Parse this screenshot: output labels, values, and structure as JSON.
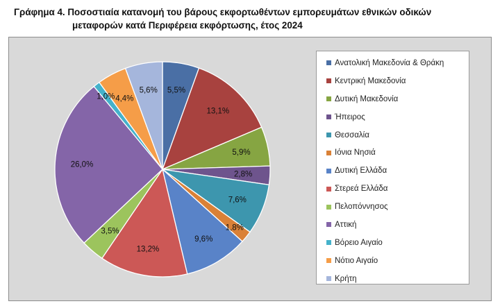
{
  "chart_data": {
    "type": "pie",
    "title_line1": "Γράφημα 4. Ποσοστιαία κατανομή του βάρους εκφορτωθέντων εμπορευμάτων εθνικών οδικών",
    "title_line2": "μεταφορών κατά Περιφέρεια εκφόρτωσης, έτος 2024",
    "legend_position": "right",
    "slices": [
      {
        "name": "Ανατολική Μακεδονία & Θράκη",
        "value": 5.5,
        "label": "5,5%",
        "color": "#4a6fa5"
      },
      {
        "name": "Κεντρική Μακεδονία",
        "value": 13.1,
        "label": "13,1%",
        "color": "#a8423f"
      },
      {
        "name": "Δυτική Μακεδονία",
        "value": 5.9,
        "label": "5,9%",
        "color": "#86a542"
      },
      {
        "name": "Ήπειρος",
        "value": 2.8,
        "label": "2,8%",
        "color": "#6e548d"
      },
      {
        "name": "Θεσσαλία",
        "value": 7.6,
        "label": "7,6%",
        "color": "#3d96ae"
      },
      {
        "name": "Ιόνια Νησιά",
        "value": 1.8,
        "label": "1,8%",
        "color": "#da8137"
      },
      {
        "name": "Δυτική Ελλάδα",
        "value": 9.6,
        "label": "9,6%",
        "color": "#5983c8"
      },
      {
        "name": "Στερεά Ελλάδα",
        "value": 13.2,
        "label": "13,2%",
        "color": "#cc5856"
      },
      {
        "name": "Πελοπόννησος",
        "value": 3.5,
        "label": "3,5%",
        "color": "#9cc45d"
      },
      {
        "name": "Αττική",
        "value": 26.0,
        "label": "26,0%",
        "color": "#8465a8"
      },
      {
        "name": "Βόρειο Αιγαίο",
        "value": 1.0,
        "label": "1,0%",
        "color": "#45b2cb"
      },
      {
        "name": "Νότιο Αιγαίο",
        "value": 4.4,
        "label": "4,4%",
        "color": "#f59d48"
      },
      {
        "name": "Κρήτη",
        "value": 5.6,
        "label": "5,6%",
        "color": "#a5b6dc"
      }
    ]
  }
}
